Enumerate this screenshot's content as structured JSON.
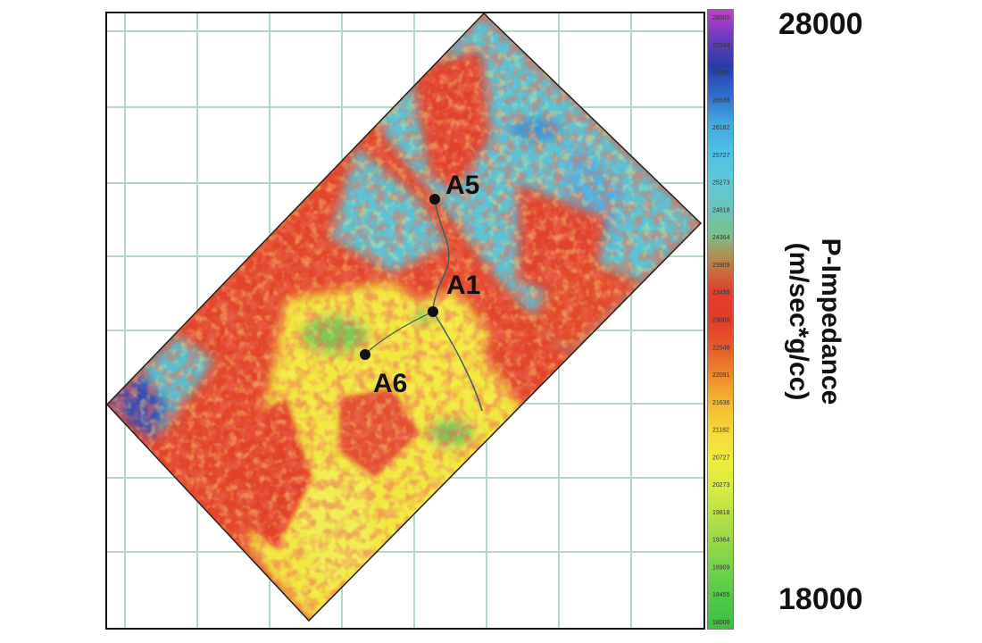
{
  "map": {
    "wells": [
      {
        "id": "A5",
        "label": "A5"
      },
      {
        "id": "A1",
        "label": "A1"
      },
      {
        "id": "A6",
        "label": "A6"
      }
    ]
  },
  "colorbar": {
    "title_line1": "P-Impedance",
    "title_line2": "(m/sec*g/cc)",
    "max_label": "28000",
    "min_label": "18000",
    "ticks": [
      "28000",
      "27546",
      "27091",
      "26636",
      "26182",
      "25727",
      "25273",
      "24818",
      "24364",
      "23909",
      "23455",
      "23000",
      "22546",
      "22091",
      "21636",
      "21182",
      "20727",
      "20273",
      "19818",
      "19364",
      "18909",
      "18455",
      "18000"
    ],
    "colors": [
      "#c040c8",
      "#6a3cc0",
      "#2a3aa8",
      "#2f6ccc",
      "#3fa8e0",
      "#4dc1e6",
      "#5ec8d8",
      "#68c6c0",
      "#7ac08a",
      "#c08040",
      "#e04030",
      "#e43a28",
      "#e85a2a",
      "#ef8a2c",
      "#f5b82e",
      "#f7d83a",
      "#f0ec3c",
      "#d8ec40",
      "#b8e044",
      "#94d848",
      "#6ed24a",
      "#4ec848",
      "#38c040"
    ]
  }
}
